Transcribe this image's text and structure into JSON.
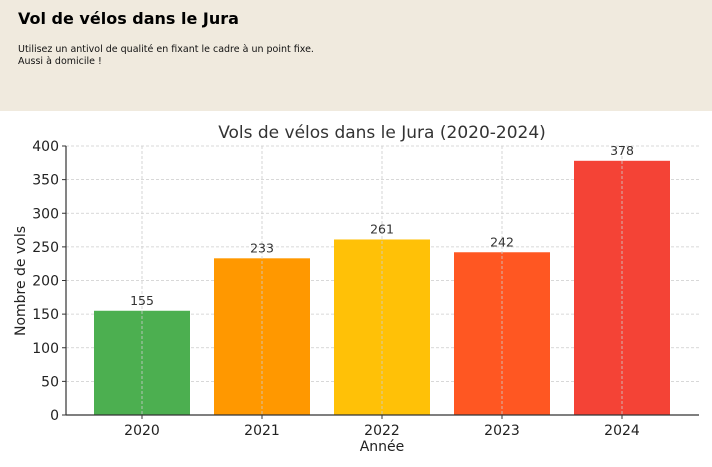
{
  "header": {
    "title": "Vol de vélos dans le Jura",
    "line1": "Utilisez un antivol de qualité en fixant le cadre à un point fixe.",
    "line2": "Aussi à domicile !"
  },
  "chart_data": {
    "type": "bar",
    "title": "Vols de vélos dans le Jura (2020-2024)",
    "xlabel": "Année",
    "ylabel": "Nombre de vols",
    "categories": [
      "2020",
      "2021",
      "2022",
      "2023",
      "2024"
    ],
    "values": [
      155,
      233,
      261,
      242,
      378
    ],
    "colors": [
      "#4caf50",
      "#ff9800",
      "#ffc107",
      "#ff5722",
      "#f44336"
    ],
    "ylim": [
      0,
      400
    ],
    "yticks": [
      0,
      50,
      100,
      150,
      200,
      250,
      300,
      350,
      400
    ],
    "grid": true,
    "data_labels": true
  }
}
